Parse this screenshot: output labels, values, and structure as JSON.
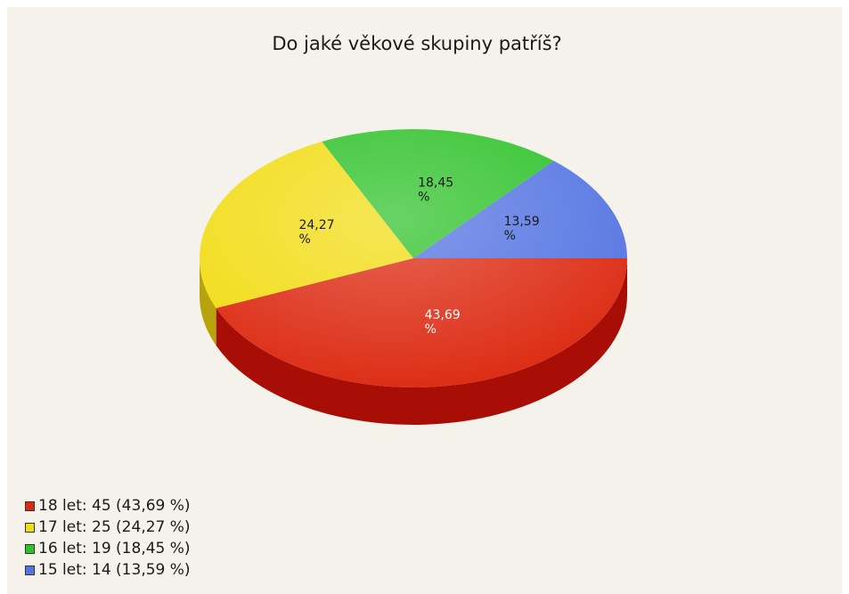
{
  "chart_data": {
    "type": "pie",
    "title": "Do jaké věkové skupiny patříš?",
    "categories": [
      "18 let",
      "17 let",
      "16 let",
      "15 let"
    ],
    "values": [
      45,
      25,
      19,
      14
    ],
    "slice_labels": [
      "43,69",
      "24,27",
      "18,45",
      "13,59"
    ],
    "percent_sign": "%",
    "colors": [
      "#dc2a12",
      "#f2dc14",
      "#2fc22a",
      "#5474e2"
    ],
    "side_colors": [
      "#a80e06",
      "#b9a30c",
      "#1c8a18",
      "#3552b0"
    ],
    "label_colors": [
      "#ffffff",
      "#1a1a1a",
      "#1a1a1a",
      "#1a1a1a"
    ],
    "style": "3d-pie",
    "legend_position": "bottom-left"
  },
  "legend": {
    "items": [
      {
        "text": "18 let: 45 (43,69 %)",
        "color": "#dc2a12"
      },
      {
        "text": "17 let: 25 (24,27 %)",
        "color": "#f2dc14"
      },
      {
        "text": "16 let: 19 (18,45 %)",
        "color": "#2fc22a"
      },
      {
        "text": "15 let: 14 (13,59 %)",
        "color": "#5474e2"
      }
    ]
  }
}
